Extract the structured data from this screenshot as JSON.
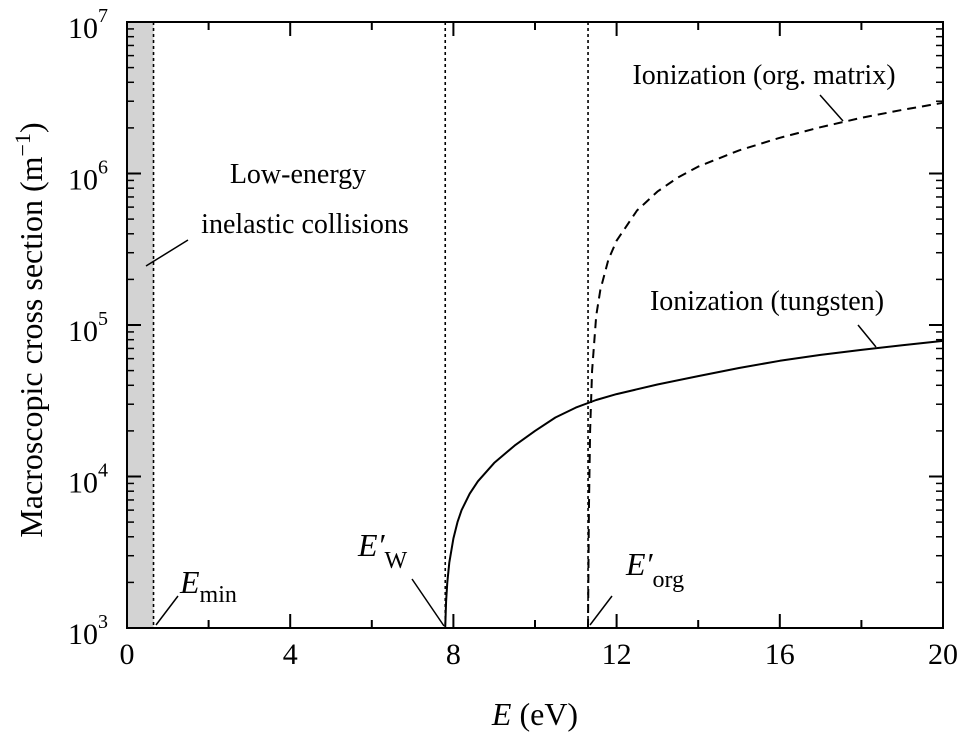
{
  "chart_data": {
    "type": "line",
    "xlabel": {
      "var": "E",
      "unit": " (eV)"
    },
    "ylabel": {
      "main": "Macroscopic cross section (m",
      "sup": "−1",
      "close": ")"
    },
    "xlim": [
      0,
      20
    ],
    "ylim": [
      1000,
      10000000
    ],
    "yscale": "log",
    "x_ticks": [
      0,
      4,
      8,
      12,
      16,
      20
    ],
    "x_tick_labels": [
      "0",
      "4",
      "8",
      "12",
      "16",
      "20"
    ],
    "y_ticks": [
      1000,
      10000,
      100000,
      1000000,
      10000000
    ],
    "y_tick_labels": [
      {
        "base": "10",
        "exp": "3"
      },
      {
        "base": "10",
        "exp": "4"
      },
      {
        "base": "10",
        "exp": "5"
      },
      {
        "base": "10",
        "exp": "6"
      },
      {
        "base": "10",
        "exp": "7"
      }
    ],
    "grid": false,
    "shaded_region": {
      "from": 0,
      "to": 0.65,
      "color": "#d3d3d3"
    },
    "vlines": [
      {
        "x": 0.65,
        "style": "dotted"
      },
      {
        "x": 7.8,
        "style": "dotted"
      },
      {
        "x": 11.3,
        "style": "dotted"
      }
    ],
    "series": [
      {
        "name": "Ionization (tungsten)",
        "style": "solid",
        "x": [
          7.8,
          7.82,
          7.85,
          7.9,
          8.0,
          8.1,
          8.2,
          8.4,
          8.6,
          9.0,
          9.5,
          10.0,
          10.5,
          11.0,
          11.5,
          12.0,
          13.0,
          14.0,
          15.0,
          16.0,
          17.0,
          18.0,
          19.0,
          20.0
        ],
        "y": [
          1000,
          1500,
          2000,
          2700,
          3900,
          5000,
          6000,
          7700,
          9300,
          12300,
          16000,
          20000,
          24500,
          28500,
          32000,
          35000,
          40500,
          46000,
          52000,
          58000,
          63500,
          68500,
          73500,
          78500
        ]
      },
      {
        "name": "Ionization (org. matrix)",
        "style": "dashed",
        "x": [
          11.3,
          11.32,
          11.35,
          11.4,
          11.5,
          11.6,
          11.8,
          12.0,
          12.5,
          13.0,
          13.5,
          14.0,
          15.0,
          16.0,
          17.0,
          18.0,
          19.0,
          20.0
        ],
        "y": [
          1000,
          6000,
          20000,
          50000,
          115000,
          170000,
          270000,
          360000,
          570000,
          760000,
          940000,
          1110000,
          1420000,
          1720000,
          2020000,
          2330000,
          2630000,
          2930000
        ]
      }
    ],
    "annotations": [
      {
        "id": "low-energy-line1",
        "text": "Low-energy"
      },
      {
        "id": "low-energy-line2",
        "text": "inelastic collisions"
      },
      {
        "id": "ion-tungsten",
        "text": "Ionization (tungsten)"
      },
      {
        "id": "ion-org",
        "text": "Ionization (org. matrix)"
      }
    ],
    "markers": [
      {
        "id": "emin",
        "var": "E",
        "sub": "min",
        "x": 0.65
      },
      {
        "id": "ew",
        "var": "E′",
        "sub": "W",
        "x": 7.8
      },
      {
        "id": "eorg",
        "var": "E′",
        "sub": "org",
        "x": 11.3
      }
    ]
  }
}
